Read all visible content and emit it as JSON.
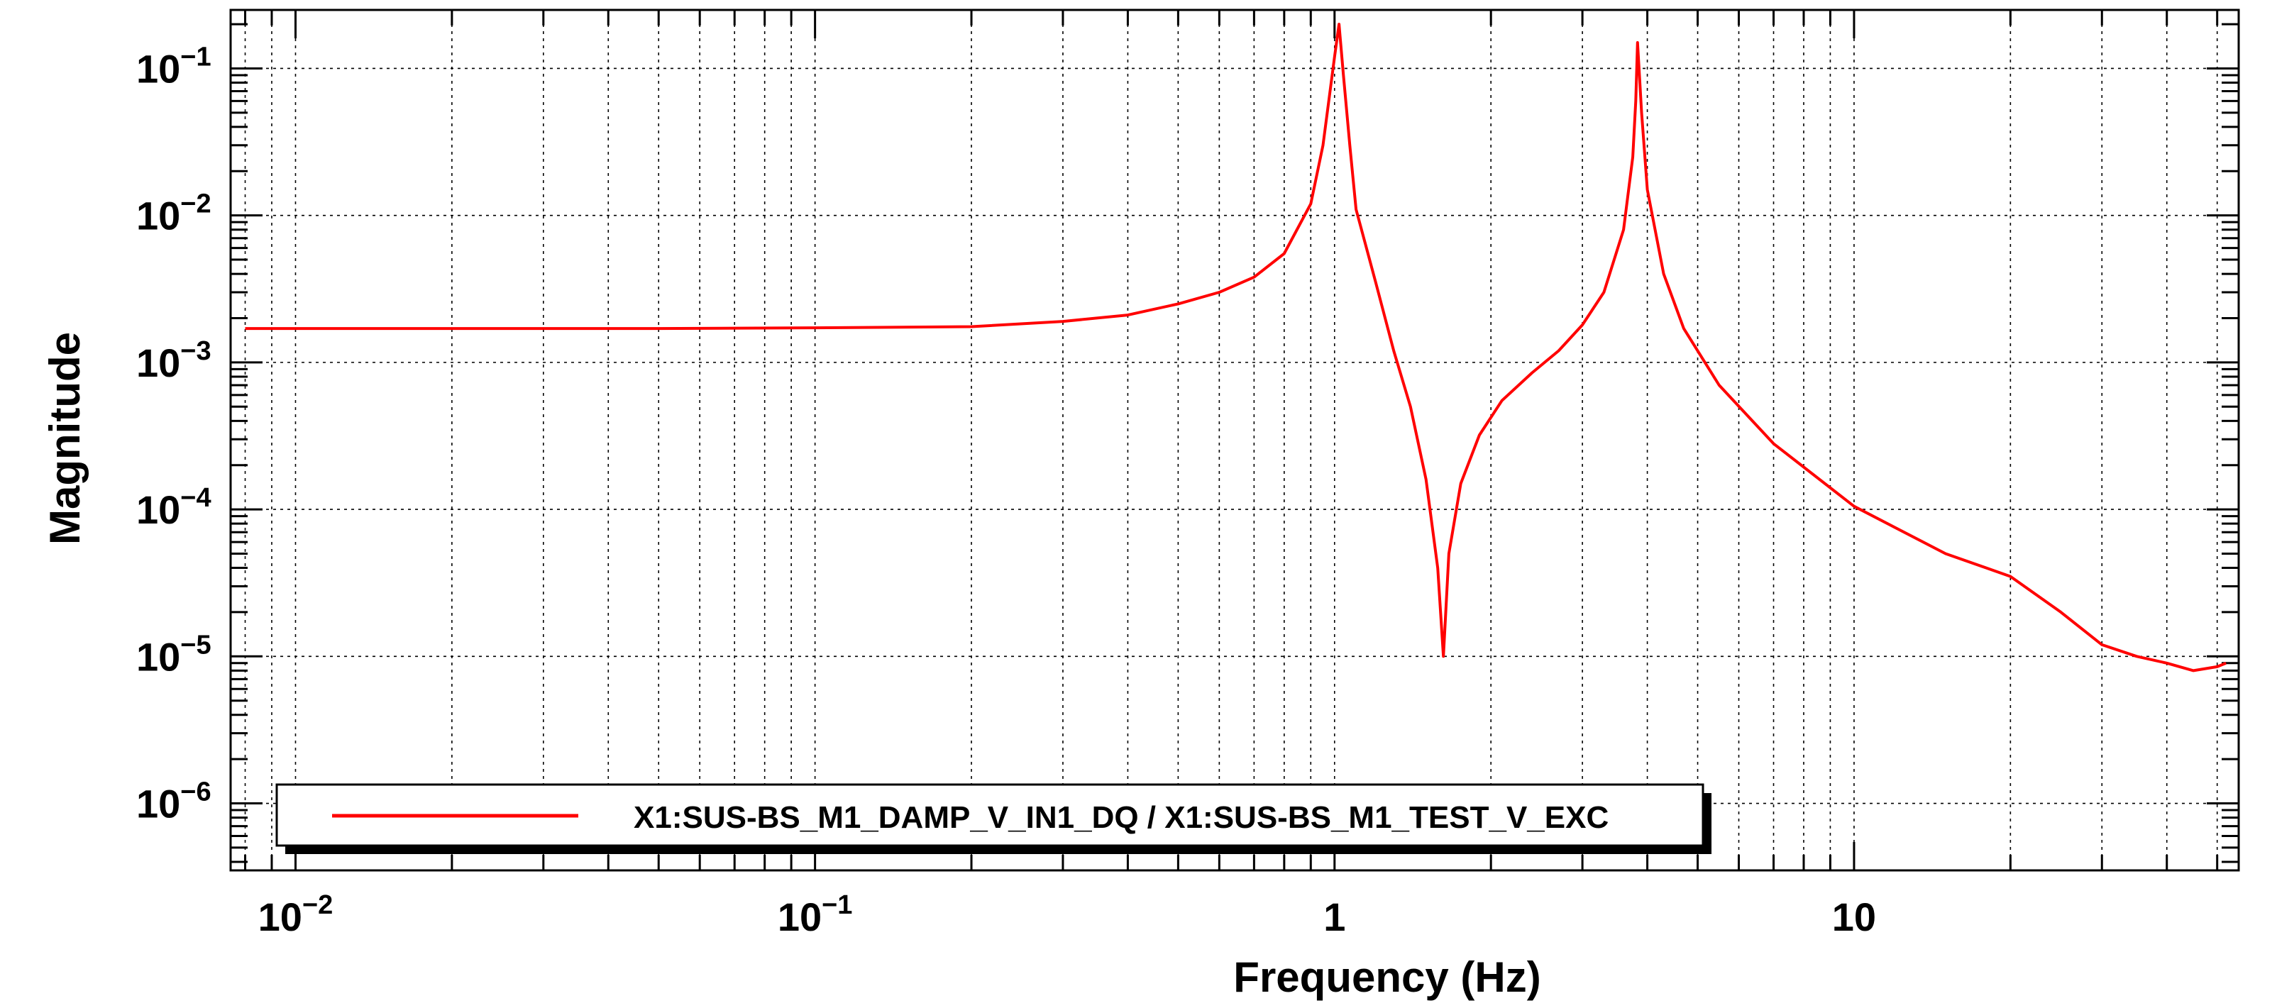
{
  "chart_data": {
    "type": "line",
    "title": "",
    "xlabel": "Frequency (Hz)",
    "ylabel": "Magnitude",
    "x_scale": "log",
    "y_scale": "log",
    "xlim": [
      0.0075,
      55
    ],
    "ylim": [
      3.5e-07,
      0.25
    ],
    "grid": true,
    "legend_position": "bottom-left",
    "x_ticks": [
      {
        "value": 0.01,
        "base": "10",
        "exp": "−2"
      },
      {
        "value": 0.1,
        "base": "10",
        "exp": "−1"
      },
      {
        "value": 1,
        "base": "1",
        "exp": ""
      },
      {
        "value": 10,
        "base": "10",
        "exp": ""
      }
    ],
    "y_ticks": [
      {
        "value": 1e-06,
        "base": "10",
        "exp": "−6"
      },
      {
        "value": 1e-05,
        "base": "10",
        "exp": "−5"
      },
      {
        "value": 0.0001,
        "base": "10",
        "exp": "−4"
      },
      {
        "value": 0.001,
        "base": "10",
        "exp": "−3"
      },
      {
        "value": 0.01,
        "base": "10",
        "exp": "−2"
      },
      {
        "value": 0.1,
        "base": "10",
        "exp": "−1"
      }
    ],
    "series": [
      {
        "name": "X1:SUS-BS_M1_DAMP_V_IN1_DQ / X1:SUS-BS_M1_TEST_V_EXC",
        "color": "#ff0000",
        "x": [
          0.008,
          0.01,
          0.02,
          0.05,
          0.1,
          0.2,
          0.3,
          0.4,
          0.5,
          0.6,
          0.7,
          0.8,
          0.9,
          0.95,
          1.0,
          1.02,
          1.04,
          1.07,
          1.1,
          1.2,
          1.3,
          1.4,
          1.5,
          1.58,
          1.62,
          1.66,
          1.75,
          1.9,
          2.1,
          2.4,
          2.7,
          3.0,
          3.3,
          3.6,
          3.75,
          3.8,
          3.83,
          3.9,
          4.0,
          4.3,
          4.7,
          5.5,
          7,
          10,
          15,
          20,
          25,
          30,
          35,
          40,
          45,
          50,
          52
        ],
        "y": [
          0.0017,
          0.0017,
          0.0017,
          0.0017,
          0.00172,
          0.00175,
          0.0019,
          0.0021,
          0.0025,
          0.003,
          0.0038,
          0.0055,
          0.012,
          0.03,
          0.12,
          0.2,
          0.09,
          0.03,
          0.011,
          0.0035,
          0.0012,
          0.0005,
          0.00016,
          4e-05,
          1e-05,
          5e-05,
          0.00015,
          0.00032,
          0.00055,
          0.00085,
          0.0012,
          0.0018,
          0.003,
          0.008,
          0.025,
          0.06,
          0.15,
          0.05,
          0.015,
          0.004,
          0.0017,
          0.0007,
          0.00028,
          0.000105,
          5e-05,
          3.5e-05,
          2e-05,
          1.2e-05,
          1e-05,
          9e-06,
          8e-06,
          8.5e-06,
          9e-06
        ]
      }
    ]
  }
}
